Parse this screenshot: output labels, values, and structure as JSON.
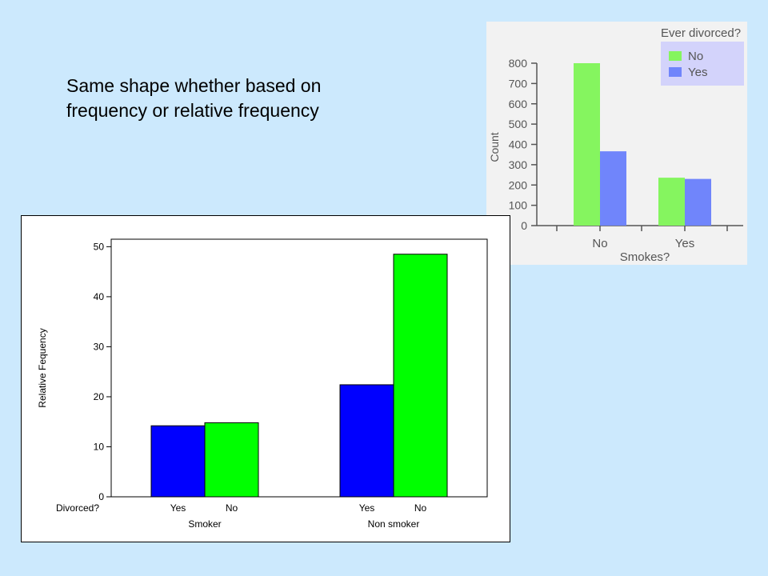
{
  "slide": {
    "caption_lines": [
      "Same shape whether based on",
      "frequency or relative frequency"
    ]
  },
  "chart_data": [
    {
      "type": "bar",
      "categories": [
        "No",
        "Yes"
      ],
      "xlabel": "Smokes?",
      "ylabel": "Count",
      "ylim": [
        0,
        800
      ],
      "yticks": [
        0,
        100,
        200,
        300,
        400,
        500,
        600,
        700,
        800
      ],
      "legend_title": "Ever divorced?",
      "legend_placement": "top-right",
      "series": [
        {
          "name": "No",
          "color": "#85f55f",
          "values": [
            800,
            236
          ]
        },
        {
          "name": "Yes",
          "color": "#7085fb",
          "values": [
            366,
            230
          ]
        }
      ]
    },
    {
      "type": "bar",
      "categories": [
        "Smoker",
        "Non smoker"
      ],
      "xlabel": "",
      "ylabel": "Relative Fequency",
      "ylim": [
        0,
        50
      ],
      "yticks": [
        0,
        10,
        20,
        30,
        40,
        50
      ],
      "row_label": "Divorced?",
      "series": [
        {
          "name": "Yes",
          "color": "#0000ff",
          "values": [
            14.2,
            22.4
          ]
        },
        {
          "name": "No",
          "color": "#00ff00",
          "values": [
            14.8,
            48.5
          ]
        }
      ]
    }
  ]
}
